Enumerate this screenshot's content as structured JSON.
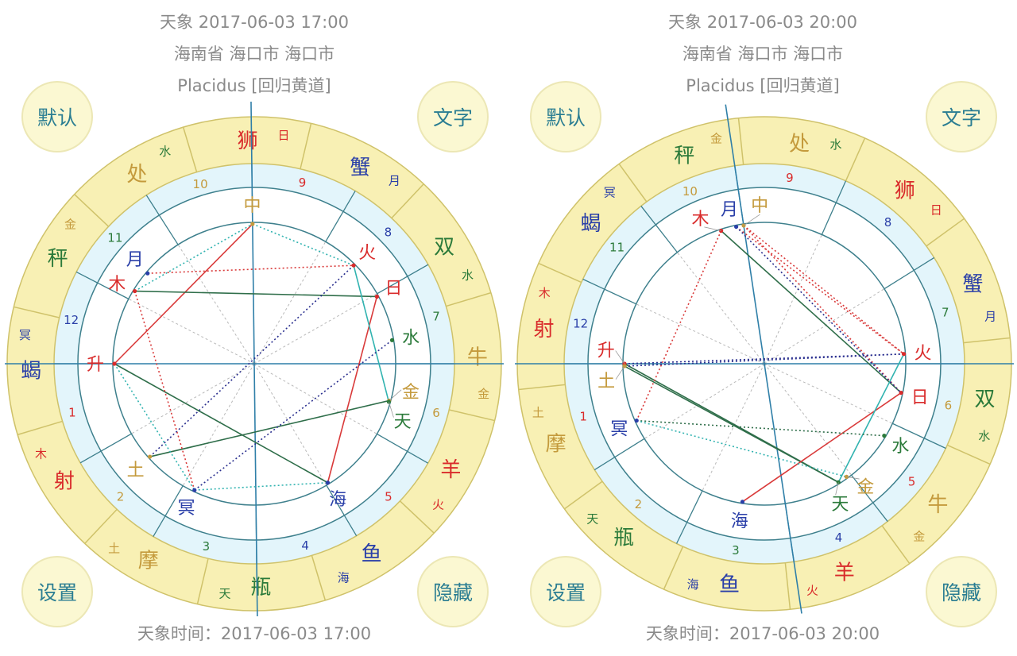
{
  "colors": {
    "fire": "#d92b2b",
    "earth": "#c49a3c",
    "air": "#2b7a3a",
    "water": "#2a3fa8",
    "ring_zodiac": "#f8f0b4",
    "ring_zodiac_stroke": "#cfc26a",
    "ring_house": "#e3f5fb",
    "circle_stroke": "#3d7f8c",
    "axis": "#2f7fa8"
  },
  "aspect_styles": {
    "red_solid": {
      "color": "#d93a3a",
      "dash": ""
    },
    "green_solid": {
      "color": "#2f6e4a",
      "dash": ""
    },
    "teal_solid": {
      "color": "#31b3b0",
      "dash": ""
    },
    "red_dotted": {
      "color": "#d93a3a",
      "dash": "2 3"
    },
    "blue_dotted": {
      "color": "#2a2f8f",
      "dash": "2 3"
    },
    "teal_dotted": {
      "color": "#31b3b0",
      "dash": "2 3"
    },
    "green_dotted": {
      "color": "#2f6e4a",
      "dash": "2 3"
    }
  },
  "signs": [
    {
      "name": "羊",
      "ruler": "火",
      "element": "fire"
    },
    {
      "name": "牛",
      "ruler": "金",
      "element": "earth"
    },
    {
      "name": "双",
      "ruler": "水",
      "element": "air"
    },
    {
      "name": "蟹",
      "ruler": "月",
      "element": "water"
    },
    {
      "name": "狮",
      "ruler": "日",
      "element": "fire"
    },
    {
      "name": "处",
      "ruler": "水",
      "element": "earth"
    },
    {
      "name": "秤",
      "ruler": "金",
      "element": "air"
    },
    {
      "name": "蝎",
      "ruler": "冥",
      "element": "water"
    },
    {
      "name": "射",
      "ruler": "木",
      "element": "fire"
    },
    {
      "name": "摩",
      "ruler": "土",
      "element": "earth"
    },
    {
      "name": "瓶",
      "ruler": "天",
      "element": "air"
    },
    {
      "name": "鱼",
      "ruler": "海",
      "element": "water"
    }
  ],
  "planet_colors": {
    "日": "fire",
    "月": "water",
    "水": "air",
    "金": "earth",
    "火": "fire",
    "木": "fire",
    "土": "earth",
    "天": "air",
    "海": "water",
    "冥": "water",
    "升": "fire",
    "中": "earth"
  },
  "house_colors": [
    "fire",
    "earth",
    "air",
    "water"
  ],
  "charts": [
    {
      "title": "天象 2017-06-03 17:00",
      "location": "海南省 海口市 海口市",
      "system": "Placidus [回归黄道]",
      "footer": "天象时间：2017-06-03 17:00",
      "buttons": {
        "default": "默认",
        "text": "文字",
        "settings": "设置",
        "hide": "隐藏"
      },
      "asc_lon": 223.3,
      "mc_lon": 134,
      "house_cusps": [
        223.3,
        253,
        283,
        314,
        344,
        13.5,
        43.3,
        73,
        103,
        134,
        165.9,
        196
      ],
      "house_numbers": [
        "1",
        "2",
        "3",
        "4",
        "5",
        "6",
        "7",
        "8",
        "9",
        "10",
        "11",
        "12"
      ],
      "planets": [
        {
          "name": "月",
          "lon": 183
        },
        {
          "name": "木",
          "lon": 192
        },
        {
          "name": "升",
          "lon": 223.3
        },
        {
          "name": "中",
          "lon": 134
        },
        {
          "name": "火",
          "lon": 88
        },
        {
          "name": "日",
          "lon": 72
        },
        {
          "name": "水",
          "lon": 53
        },
        {
          "name": "金",
          "lon": 28
        },
        {
          "name": "天",
          "lon": 27.5
        },
        {
          "name": "海",
          "lon": 345
        },
        {
          "name": "冥",
          "lon": 288
        },
        {
          "name": "土",
          "lon": 265
        }
      ],
      "aspects": [
        {
          "a": "升",
          "b": "中",
          "style": "red_solid"
        },
        {
          "a": "日",
          "b": "海",
          "style": "red_solid"
        },
        {
          "a": "木",
          "b": "日",
          "style": "green_solid"
        },
        {
          "a": "升",
          "b": "海",
          "style": "green_solid"
        },
        {
          "a": "土",
          "b": "金",
          "style": "green_solid"
        },
        {
          "a": "火",
          "b": "天",
          "style": "teal_solid"
        },
        {
          "a": "月",
          "b": "火",
          "style": "red_dotted"
        },
        {
          "a": "木",
          "b": "冥",
          "style": "red_dotted"
        },
        {
          "a": "木",
          "b": "中",
          "style": "teal_dotted"
        },
        {
          "a": "冥",
          "b": "海",
          "style": "teal_dotted"
        },
        {
          "a": "升",
          "b": "冥",
          "style": "teal_dotted"
        },
        {
          "a": "中",
          "b": "火",
          "style": "teal_dotted"
        },
        {
          "a": "土",
          "b": "火",
          "style": "blue_dotted"
        },
        {
          "a": "冥",
          "b": "水",
          "style": "blue_dotted"
        }
      ]
    },
    {
      "title": "天象 2017-06-03 20:00",
      "location": "海南省 海口市 海口市",
      "system": "Placidus [回归黄道]",
      "footer": "天象时间：2017-06-03 20:00",
      "buttons": {
        "default": "默认",
        "text": "文字",
        "settings": "设置",
        "hide": "隐藏"
      },
      "asc_lon": 264,
      "mc_lon": 182.5,
      "house_cusps": [
        264,
        296,
        328,
        2.5,
        32,
        59,
        84,
        116,
        150,
        182.5,
        212,
        239
      ],
      "house_numbers": [
        "1",
        "2",
        "3",
        "4",
        "5",
        "6",
        "7",
        "8",
        "9",
        "10",
        "11",
        "12"
      ],
      "planets": [
        {
          "name": "月",
          "lon": 185.6
        },
        {
          "name": "木",
          "lon": 192
        },
        {
          "name": "升",
          "lon": 264
        },
        {
          "name": "中",
          "lon": 182.5
        },
        {
          "name": "火",
          "lon": 88
        },
        {
          "name": "日",
          "lon": 72
        },
        {
          "name": "水",
          "lon": 53
        },
        {
          "name": "金",
          "lon": 30
        },
        {
          "name": "天",
          "lon": 26
        },
        {
          "name": "海",
          "lon": 345
        },
        {
          "name": "冥",
          "lon": 288
        },
        {
          "name": "土",
          "lon": 265
        }
      ],
      "aspects": [
        {
          "a": "木",
          "b": "日",
          "style": "green_solid"
        },
        {
          "a": "土",
          "b": "天",
          "style": "green_solid"
        },
        {
          "a": "升",
          "b": "天",
          "style": "green_solid"
        },
        {
          "a": "海",
          "b": "日",
          "style": "red_solid"
        },
        {
          "a": "火",
          "b": "天",
          "style": "teal_solid"
        },
        {
          "a": "木",
          "b": "冥",
          "style": "red_dotted"
        },
        {
          "a": "月",
          "b": "火",
          "style": "red_dotted"
        },
        {
          "a": "中",
          "b": "火",
          "style": "red_dotted"
        },
        {
          "a": "中",
          "b": "日",
          "style": "red_dotted"
        },
        {
          "a": "月",
          "b": "日",
          "style": "blue_dotted"
        },
        {
          "a": "升",
          "b": "火",
          "style": "blue_dotted"
        },
        {
          "a": "土",
          "b": "火",
          "style": "blue_dotted"
        },
        {
          "a": "冥",
          "b": "水",
          "style": "green_dotted"
        },
        {
          "a": "冥",
          "b": "金",
          "style": "teal_dotted"
        }
      ]
    }
  ]
}
